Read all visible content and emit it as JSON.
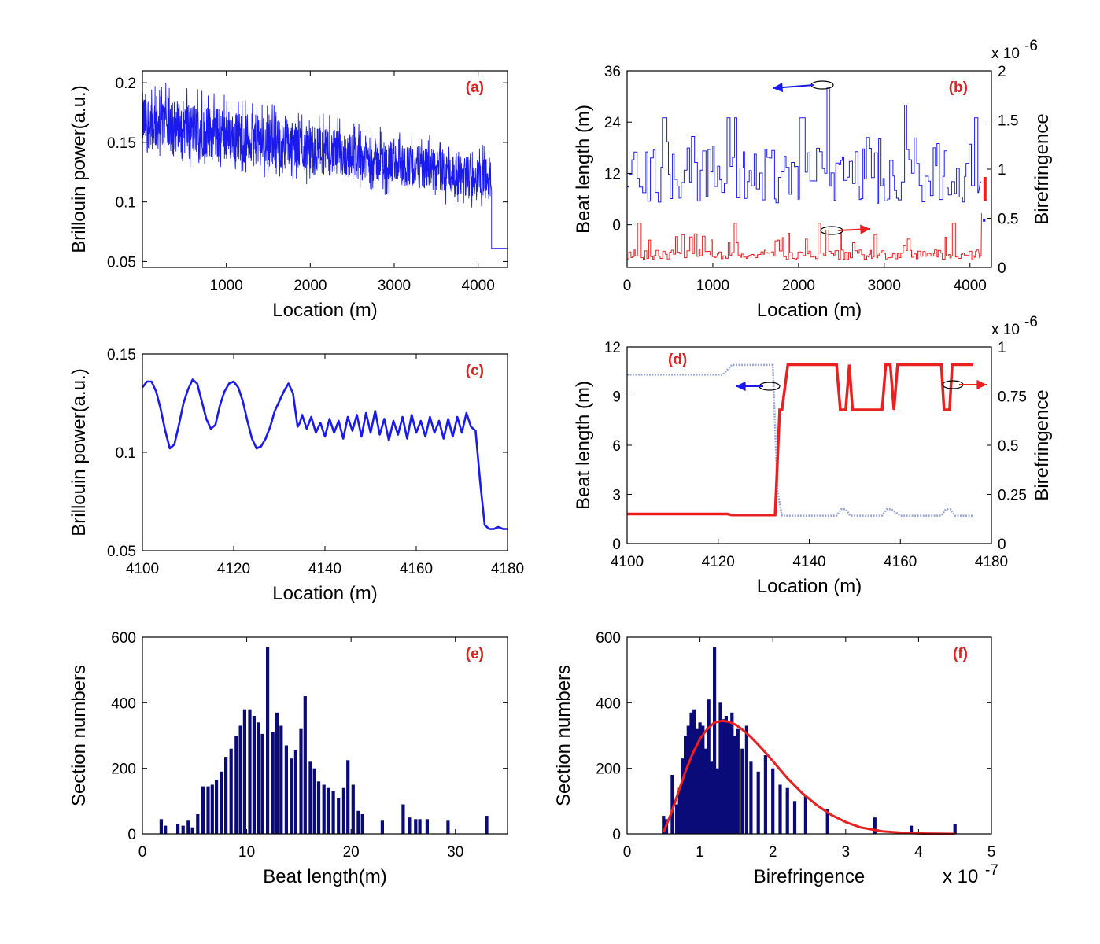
{
  "colors": {
    "blue": "#1a1aee",
    "red": "#e82020",
    "navy": "#0a0a78",
    "gray": "#9aa6d6",
    "label_red": "#e02020"
  },
  "chart_data": [
    {
      "id": "a",
      "type": "line",
      "panel_label": "(a)",
      "xlabel": "Location (m)",
      "ylabel": "Brillouin power(a.u.)",
      "xlim": [
        0,
        4350
      ],
      "ylim": [
        0.045,
        0.21
      ],
      "xticks": [
        "1000",
        "2000",
        "3000",
        "4000"
      ],
      "yticks": [
        "0.05",
        "0.1",
        "0.15",
        "0.2"
      ],
      "series": [
        {
          "name": "Brillouin power",
          "color": "blue",
          "trend": {
            "x": [
              0,
              4150
            ],
            "upper": [
              0.192,
              0.135
            ],
            "lower": [
              0.145,
              0.102
            ]
          },
          "tail": {
            "x": [
              4160,
              4350
            ],
            "y": [
              0.061,
              0.061
            ]
          }
        }
      ]
    },
    {
      "id": "b",
      "type": "line",
      "panel_label": "(b)",
      "xlabel": "Location (m)",
      "ylabel": "Beat length (m)",
      "ylabel_right": "Birefringence",
      "right_exponent": "x 10",
      "right_exponent_power": "-6",
      "xlim": [
        0,
        4250
      ],
      "ylim": [
        -10,
        36
      ],
      "ylim_right": [
        0,
        2
      ],
      "xticks": [
        "0",
        "1000",
        "2000",
        "3000",
        "4000"
      ],
      "yticks": [
        "0",
        "12",
        "24",
        "36"
      ],
      "yticks_right": [
        "0",
        "0.5",
        "1",
        "1.5",
        "2"
      ],
      "series": [
        {
          "name": "Beat length",
          "axis": "left",
          "color": "blue",
          "baseline": 12,
          "spikes_x": [
            430,
            1180,
            1250,
            2020,
            2330,
            3230,
            4070
          ],
          "spikes_y": [
            25,
            25,
            25,
            25,
            32,
            28,
            25
          ]
        },
        {
          "name": "Birefringence",
          "axis": "right",
          "color": "red",
          "baseline": 0.12,
          "spikes_x": [
            130,
            1250,
            2230,
            2330,
            3800
          ],
          "spikes_y": [
            0.45,
            0.45,
            0.45,
            0.38,
            0.45
          ]
        }
      ]
    },
    {
      "id": "c",
      "type": "line",
      "panel_label": "(c)",
      "xlabel": "Location (m)",
      "ylabel": "Brillouin power(a.u.)",
      "xlim": [
        4100,
        4180
      ],
      "ylim": [
        0.05,
        0.15
      ],
      "xticks": [
        "4100",
        "4120",
        "4140",
        "4160",
        "4180"
      ],
      "yticks": [
        "0.05",
        "0.1",
        "0.15"
      ],
      "series": [
        {
          "name": "Brillouin power",
          "color": "blue",
          "x": [
            4100,
            4101,
            4102,
            4103,
            4104,
            4105,
            4106,
            4107,
            4108,
            4109,
            4110,
            4111,
            4112,
            4113,
            4114,
            4115,
            4116,
            4117,
            4118,
            4119,
            4120,
            4121,
            4122,
            4123,
            4124,
            4125,
            4126,
            4127,
            4128,
            4129,
            4130,
            4131,
            4132,
            4133,
            4134,
            4134.5,
            4135,
            4136,
            4137,
            4138,
            4139,
            4140,
            4141,
            4142,
            4143,
            4144,
            4145,
            4146,
            4147,
            4148,
            4149,
            4150,
            4151,
            4152,
            4153,
            4154,
            4155,
            4156,
            4157,
            4158,
            4159,
            4160,
            4161,
            4162,
            4163,
            4164,
            4165,
            4166,
            4167,
            4168,
            4169,
            4170,
            4171,
            4172,
            4173,
            4174,
            4175,
            4176,
            4177,
            4178,
            4179,
            4180
          ],
          "y": [
            0.133,
            0.136,
            0.136,
            0.131,
            0.122,
            0.111,
            0.102,
            0.104,
            0.114,
            0.125,
            0.132,
            0.137,
            0.135,
            0.126,
            0.117,
            0.112,
            0.114,
            0.124,
            0.131,
            0.135,
            0.136,
            0.133,
            0.126,
            0.116,
            0.107,
            0.102,
            0.103,
            0.107,
            0.113,
            0.121,
            0.126,
            0.131,
            0.135,
            0.13,
            0.113,
            0.115,
            0.119,
            0.112,
            0.118,
            0.11,
            0.115,
            0.108,
            0.117,
            0.11,
            0.116,
            0.107,
            0.118,
            0.111,
            0.119,
            0.108,
            0.12,
            0.11,
            0.121,
            0.109,
            0.117,
            0.106,
            0.116,
            0.109,
            0.118,
            0.107,
            0.119,
            0.11,
            0.116,
            0.108,
            0.118,
            0.11,
            0.116,
            0.107,
            0.117,
            0.108,
            0.118,
            0.11,
            0.12,
            0.113,
            0.111,
            0.085,
            0.063,
            0.061,
            0.061,
            0.062,
            0.061,
            0.061
          ]
        }
      ]
    },
    {
      "id": "d",
      "type": "line",
      "panel_label": "(d)",
      "xlabel": "Location (m)",
      "ylabel": "Beat length (m)",
      "ylabel_right": "Birefringence",
      "right_exponent": "x 10",
      "right_exponent_power": "-6",
      "xlim": [
        4100,
        4180
      ],
      "ylim": [
        0,
        12
      ],
      "ylim_right": [
        0,
        1
      ],
      "xticks": [
        "4100",
        "4120",
        "4140",
        "4160",
        "4180"
      ],
      "yticks": [
        "0",
        "3",
        "6",
        "9",
        "12"
      ],
      "yticks_right": [
        "0",
        "0.25",
        "0.5",
        "0.75",
        "1"
      ],
      "series": [
        {
          "name": "Beat length",
          "axis": "left",
          "color": "gray",
          "x": [
            4100,
            4121,
            4123,
            4132,
            4133,
            4134,
            4146,
            4147,
            4148,
            4149,
            4156,
            4157,
            4158,
            4160,
            4169,
            4170,
            4171,
            4172,
            4176
          ],
          "y": [
            10.3,
            10.3,
            10.9,
            10.9,
            3.2,
            1.7,
            1.7,
            2.1,
            2.1,
            1.7,
            1.7,
            2.1,
            2.1,
            1.7,
            1.7,
            2.1,
            2.1,
            1.7,
            1.7
          ]
        },
        {
          "name": "Birefringence",
          "axis": "right",
          "color": "red",
          "x": [
            4100,
            4122,
            4123,
            4132.5,
            4133.5,
            4134,
            4135.3,
            4136,
            4146,
            4146.8,
            4148,
            4148.8,
            4149.5,
            4156,
            4156.8,
            4157.8,
            4158.6,
            4159.4,
            4169,
            4169.6,
            4170.8,
            4171.4,
            4176
          ],
          "y": [
            0.15,
            0.15,
            0.145,
            0.145,
            0.68,
            0.68,
            0.91,
            0.91,
            0.91,
            0.68,
            0.68,
            0.91,
            0.68,
            0.68,
            0.91,
            0.91,
            0.68,
            0.91,
            0.91,
            0.68,
            0.68,
            0.91,
            0.91
          ]
        }
      ]
    },
    {
      "id": "e",
      "type": "bar",
      "panel_label": "(e)",
      "xlabel": "Beat length(m)",
      "ylabel": "Section numbers",
      "xlim": [
        0,
        35
      ],
      "ylim": [
        0,
        600
      ],
      "xticks": [
        "0",
        "10",
        "20",
        "30"
      ],
      "yticks": [
        "0",
        "200",
        "400",
        "600"
      ],
      "x": [
        1.8,
        2.2,
        3.4,
        3.9,
        4.4,
        4.8,
        5.3,
        5.8,
        6.3,
        6.7,
        7.1,
        7.6,
        8.0,
        8.5,
        9.0,
        9.4,
        9.8,
        10.3,
        10.7,
        11.1,
        11.5,
        12.0,
        12.5,
        12.9,
        13.3,
        13.8,
        14.3,
        14.7,
        15.2,
        15.6,
        16.1,
        16.5,
        16.9,
        17.4,
        17.8,
        18.3,
        18.8,
        19.3,
        19.7,
        20.2,
        20.7,
        21.1,
        23.0,
        25.0,
        25.6,
        26.2,
        26.6,
        27.3,
        29.3,
        33.0
      ],
      "values": [
        45,
        25,
        30,
        25,
        40,
        20,
        60,
        145,
        145,
        150,
        165,
        190,
        235,
        260,
        300,
        330,
        380,
        380,
        360,
        340,
        305,
        570,
        310,
        370,
        330,
        270,
        230,
        255,
        320,
        420,
        220,
        200,
        160,
        150,
        140,
        130,
        110,
        140,
        225,
        150,
        70,
        60,
        40,
        90,
        50,
        45,
        45,
        45,
        40,
        55
      ]
    },
    {
      "id": "f",
      "type": "bar",
      "panel_label": "(f)",
      "xlabel": "Birefringence",
      "ylabel": "Section numbers",
      "x_exponent": "x 10",
      "x_exponent_power": "-7",
      "xlim": [
        0,
        5
      ],
      "ylim": [
        0,
        600
      ],
      "xticks": [
        "0",
        "1",
        "2",
        "3",
        "4",
        "5"
      ],
      "yticks": [
        "0",
        "200",
        "400",
        "600"
      ],
      "x": [
        0.5,
        0.54,
        0.62,
        0.68,
        0.72,
        0.76,
        0.8,
        0.84,
        0.88,
        0.92,
        0.96,
        1.0,
        1.04,
        1.08,
        1.12,
        1.16,
        1.2,
        1.24,
        1.28,
        1.32,
        1.36,
        1.4,
        1.44,
        1.48,
        1.52,
        1.58,
        1.64,
        1.7,
        1.8,
        1.9,
        2.0,
        2.1,
        2.2,
        2.3,
        2.45,
        2.75,
        3.4,
        3.9,
        4.5
      ],
      "values": [
        55,
        45,
        180,
        90,
        140,
        230,
        300,
        330,
        370,
        380,
        320,
        340,
        330,
        260,
        410,
        220,
        570,
        200,
        400,
        350,
        360,
        340,
        370,
        300,
        320,
        260,
        330,
        220,
        190,
        240,
        200,
        150,
        140,
        100,
        120,
        75,
        50,
        25,
        30
      ],
      "fit": {
        "name": "fit curve",
        "color": "red",
        "x": [
          0.5,
          0.6,
          0.7,
          0.8,
          0.9,
          1.0,
          1.1,
          1.2,
          1.3,
          1.4,
          1.5,
          1.6,
          1.7,
          1.8,
          1.9,
          2.0,
          2.2,
          2.4,
          2.6,
          2.8,
          3.0,
          3.2,
          3.5,
          3.8,
          4.1,
          4.5
        ],
        "y": [
          5,
          60,
          125,
          190,
          245,
          290,
          320,
          340,
          345,
          342,
          332,
          315,
          295,
          272,
          248,
          222,
          170,
          125,
          88,
          58,
          36,
          20,
          8,
          3,
          1,
          0
        ]
      }
    }
  ]
}
